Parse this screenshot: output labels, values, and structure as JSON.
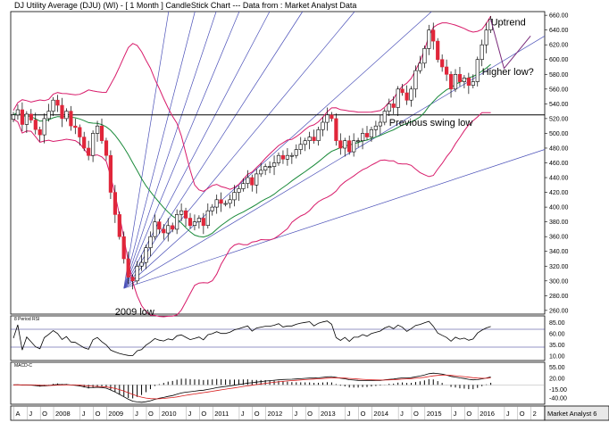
{
  "title": "DJ Utility Average (DJU) (WI) -  [ 1 Month ] CandleStick Chart --- Data from : Market Analyst Data",
  "brand": "Market Analyst 6",
  "colors": {
    "up": "#ffffff",
    "down": "#e0263a",
    "wick": "#000000",
    "bollinger": "#d81b6a",
    "ma": "#1a8a3a",
    "fan": "#4a50b8",
    "macd_signal": "#d81b1b"
  },
  "chart_data": [
    {
      "type": "candlestick",
      "name": "price",
      "title": "DJ Utility Average (DJU) (WI) -  [ 1 Month ] CandleStick Chart --- Data from : Market Analyst Data",
      "ylim": [
        255,
        665
      ],
      "yticks": [
        260,
        280,
        300,
        320,
        340,
        360,
        380,
        400,
        420,
        440,
        460,
        480,
        500,
        520,
        540,
        560,
        580,
        600,
        620,
        640,
        660
      ],
      "ytick_labels": [
        "260.00",
        "280.00",
        "300.00",
        "320.00",
        "340.00",
        "360.00",
        "380.00",
        "400.00",
        "420.00",
        "440.00",
        "460.00",
        "480.00",
        "500.00",
        "520.00",
        "540.00",
        "560.00",
        "580.00",
        "600.00",
        "620.00",
        "640.00",
        "660.00"
      ],
      "x_labels": [
        {
          "label": "A",
          "t": 0.5
        },
        {
          "label": "J",
          "t": 3.5
        },
        {
          "label": "O",
          "t": 6.5
        },
        {
          "label": "2008",
          "t": 9.5
        },
        {
          "label": "J",
          "t": 15.5
        },
        {
          "label": "O",
          "t": 18.5
        },
        {
          "label": "2009",
          "t": 21.5
        },
        {
          "label": "J",
          "t": 27.5
        },
        {
          "label": "O",
          "t": 30.5
        },
        {
          "label": "2010",
          "t": 33.5
        },
        {
          "label": "J",
          "t": 39.5
        },
        {
          "label": "O",
          "t": 42.5
        },
        {
          "label": "2011",
          "t": 45.5
        },
        {
          "label": "J",
          "t": 51.5
        },
        {
          "label": "O",
          "t": 54.5
        },
        {
          "label": "2012",
          "t": 57.5
        },
        {
          "label": "J",
          "t": 63.5
        },
        {
          "label": "O",
          "t": 66.5
        },
        {
          "label": "2013",
          "t": 69.5
        },
        {
          "label": "J",
          "t": 75.5
        },
        {
          "label": "O",
          "t": 78.5
        },
        {
          "label": "2014",
          "t": 81.5
        },
        {
          "label": "J",
          "t": 87.5
        },
        {
          "label": "O",
          "t": 90.5
        },
        {
          "label": "2015",
          "t": 93.5
        },
        {
          "label": "J",
          "t": 99.5
        },
        {
          "label": "O",
          "t": 102.5
        },
        {
          "label": "2016",
          "t": 105.5
        },
        {
          "label": "J",
          "t": 111.5
        },
        {
          "label": "O",
          "t": 114.5
        },
        {
          "label": "2",
          "t": 117.5
        }
      ],
      "close": [
        525,
        532,
        512,
        526,
        518,
        505,
        498,
        520,
        530,
        545,
        538,
        520,
        530,
        510,
        508,
        495,
        480,
        470,
        500,
        510,
        490,
        470,
        420,
        390,
        360,
        330,
        305,
        300,
        320,
        325,
        345,
        360,
        380,
        370,
        365,
        375,
        370,
        390,
        395,
        385,
        375,
        380,
        385,
        375,
        395,
        400,
        410,
        405,
        405,
        410,
        420,
        425,
        432,
        440,
        430,
        445,
        450,
        455,
        455,
        460,
        470,
        465,
        470,
        470,
        478,
        485,
        490,
        495,
        490,
        505,
        515,
        525,
        520,
        490,
        480,
        490,
        475,
        490,
        490,
        500,
        495,
        505,
        510,
        515,
        530,
        540,
        535,
        560,
        555,
        545,
        560,
        585,
        595,
        615,
        640,
        625,
        600,
        590,
        580,
        560,
        580,
        570,
        575,
        565,
        570,
        600,
        620,
        640,
        655
      ],
      "support_levels": [
        {
          "value": 525,
          "label": "Previous swing low"
        }
      ],
      "annotations": [
        {
          "text": "2009 low",
          "t": 25,
          "value": 300
        },
        {
          "text": "Previous swing low",
          "t": 85,
          "value": 525
        },
        {
          "text": "Higher low?",
          "t": 106,
          "value": 584
        },
        {
          "text": "Uptrend",
          "t": 108,
          "value": 651
        }
      ],
      "bollinger": "upper and lower bands shown",
      "moving_average": "green line shown",
      "fan_lines_from": {
        "t": 25,
        "value": 290
      }
    },
    {
      "type": "line",
      "name": "rsi",
      "label": "8 Period RSI",
      "ylim": [
        0,
        100
      ],
      "yticks": [
        10,
        35,
        60,
        85
      ],
      "ytick_labels": [
        "10.00",
        "35.00",
        "60.00",
        "85.00"
      ],
      "levels": [
        30,
        70
      ]
    },
    {
      "type": "line",
      "name": "macd",
      "label": "MACD-C",
      "ylim": [
        -60,
        70
      ],
      "yticks": [
        -40,
        -15,
        20,
        55
      ],
      "ytick_labels": [
        "-40.00",
        "-15.00",
        "20.00",
        "55.00"
      ],
      "series": [
        {
          "name": "MACD"
        },
        {
          "name": "Signal"
        }
      ]
    }
  ]
}
